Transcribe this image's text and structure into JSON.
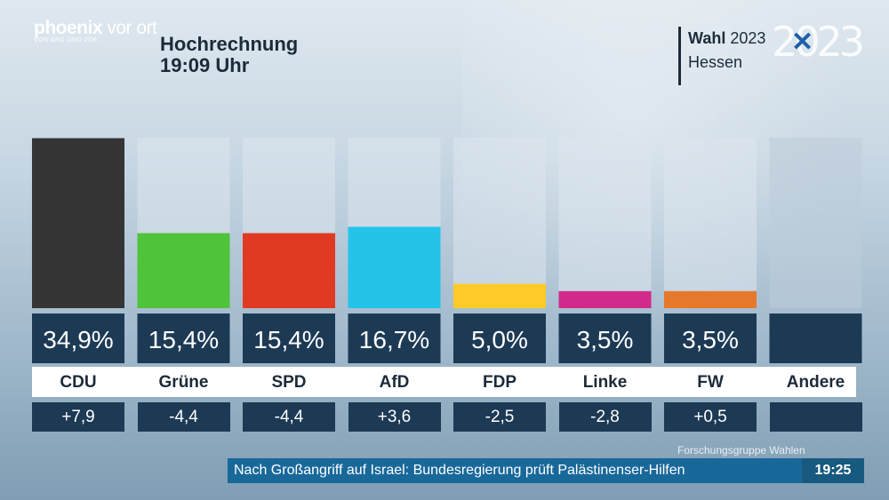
{
  "broadcaster": {
    "name_bold": "phoenix",
    "name_thin": " vor ort",
    "sub": "VON ARD UND ZDF"
  },
  "header": {
    "title_line1": "Hochrechnung",
    "title_line2": "19:09 Uhr"
  },
  "badge": {
    "word_bold": "Wahl",
    "year": " 2023",
    "region": "Hessen",
    "year_mark": "2023",
    "year_mark_x": "✕"
  },
  "colors": {
    "bar_bg": "#dce6ee",
    "value_box": "#1d3a55",
    "diff_box": "#1d3a55"
  },
  "chart_data": {
    "type": "bar",
    "title": "Hochrechnung 19:09 Uhr",
    "categories": [
      "CDU",
      "Grüne",
      "SPD",
      "AfD",
      "FDP",
      "Linke",
      "FW",
      "Andere"
    ],
    "values": [
      34.9,
      15.4,
      15.4,
      16.7,
      5.0,
      3.5,
      3.5,
      null
    ],
    "value_labels": [
      "34,9%",
      "15,4%",
      "15,4%",
      "16,7%",
      "5,0%",
      "3,5%",
      "3,5%",
      ""
    ],
    "differences": [
      "+7,9",
      "-4,4",
      "-4,4",
      "+3,6",
      "-2,5",
      "-2,8",
      "+0,5",
      ""
    ],
    "bar_colors": [
      "#353535",
      "#4fc33a",
      "#e03a22",
      "#25c3ea",
      "#fdcb27",
      "#d12a8a",
      "#e6782b",
      "#bdccd8"
    ],
    "ylim": [
      0,
      35
    ],
    "xlabel": "",
    "ylabel": ""
  },
  "footer": {
    "source": "Forschungsgruppe Wahlen",
    "ticker": "Nach Großangriff auf Israel: Bundesregierung prüft Palästinenser-Hilfen",
    "clock": "19:25"
  }
}
